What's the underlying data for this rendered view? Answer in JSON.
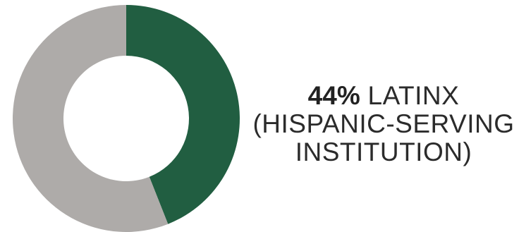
{
  "chart_data": {
    "type": "pie",
    "donut": true,
    "slices": [
      {
        "value": 44,
        "color": "#215e41"
      },
      {
        "value": 56,
        "color": "#aeaba9"
      }
    ],
    "start_angle_deg": 0,
    "direction": "clockwise"
  },
  "caption": {
    "percent": "44%",
    "line1_rest": "LATINX",
    "line2": "(HISPANIC-SERVING",
    "line3": "INSTITUTION)"
  }
}
